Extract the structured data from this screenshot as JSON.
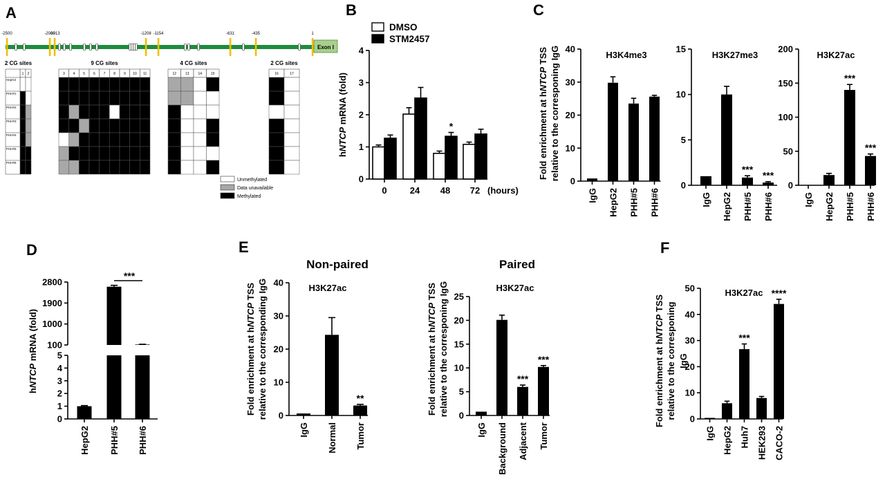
{
  "panel_labels": {
    "A": "A",
    "B": "B",
    "C": "C",
    "D": "D",
    "E": "E",
    "F": "F"
  },
  "colors": {
    "bar": "#000000",
    "open_bar": "#ffffff",
    "unavailable": "#a8a8a8",
    "gene_line": "#1e8c3c",
    "site_mark": "#f0c000",
    "exon_box": "#a8d08d"
  },
  "panel_a": {
    "positions": [
      "-2500",
      "-2000",
      "-1913",
      "-1208",
      "-1154",
      "-631",
      "-435",
      "1"
    ],
    "exon_label": "Exon I",
    "groups": [
      {
        "label": "2 CG sites",
        "cols": [
          "1",
          "2"
        ]
      },
      {
        "label": "9 CG sites",
        "cols": [
          "3",
          "4",
          "5",
          "6",
          "7",
          "8",
          "9",
          "10",
          "11"
        ]
      },
      {
        "label": "4 CG sites",
        "cols": [
          "12",
          "13",
          "14",
          "15"
        ]
      },
      {
        "label": "2 CG sites",
        "cols": [
          "16",
          "17"
        ]
      }
    ],
    "rows": [
      "HepG2",
      "PHH#1",
      "PHH#2",
      "PHH#3",
      "PHH#4",
      "PHH#5",
      "PHH#6"
    ],
    "status_matrix": [
      [
        0,
        0,
        1,
        1,
        1,
        1,
        1,
        1,
        1,
        1,
        1,
        2,
        2,
        0,
        1,
        1,
        0
      ],
      [
        1,
        0,
        1,
        1,
        1,
        1,
        1,
        1,
        1,
        1,
        1,
        2,
        2,
        0,
        0,
        1,
        0
      ],
      [
        1,
        2,
        1,
        2,
        1,
        1,
        1,
        0,
        1,
        1,
        1,
        1,
        0,
        0,
        0,
        0,
        0
      ],
      [
        1,
        2,
        1,
        1,
        2,
        1,
        1,
        1,
        1,
        1,
        1,
        1,
        0,
        0,
        1,
        1,
        0
      ],
      [
        1,
        2,
        0,
        2,
        1,
        1,
        1,
        1,
        1,
        1,
        1,
        1,
        0,
        0,
        1,
        1,
        0
      ],
      [
        1,
        1,
        2,
        1,
        1,
        1,
        1,
        1,
        1,
        1,
        1,
        1,
        0,
        0,
        0,
        1,
        0
      ],
      [
        1,
        1,
        2,
        2,
        1,
        1,
        1,
        1,
        1,
        1,
        1,
        1,
        0,
        0,
        1,
        1,
        0
      ]
    ],
    "legend": [
      "Unmethylated",
      "Data unavailable",
      "Methylated"
    ]
  },
  "chart_data": [
    {
      "panel": "B",
      "type": "bar",
      "x": [
        "0",
        "24",
        "48",
        "72"
      ],
      "x_unit": "(hours)",
      "series": [
        {
          "name": "DMSO",
          "values": [
            1.0,
            2.02,
            0.8,
            1.08
          ],
          "errors": [
            0.06,
            0.2,
            0.07,
            0.07
          ]
        },
        {
          "name": "STM2457",
          "values": [
            1.27,
            2.52,
            1.33,
            1.4
          ],
          "errors": [
            0.1,
            0.33,
            0.12,
            0.15
          ]
        }
      ],
      "ylabel_prefix": "h",
      "ylabel_gene": "NTCP",
      "ylabel_suffix": " mRNA (fold)",
      "yticks": [
        0,
        1,
        2,
        3,
        4
      ],
      "ylim": [
        0,
        4
      ],
      "annotations": [
        {
          "x": "48",
          "series": "STM2457",
          "text": "*"
        }
      ]
    },
    {
      "panel": "C",
      "type": "bar",
      "title": "H3K4me3",
      "ylabel_line1_prefix": "Fold enrichment at h",
      "ylabel_line1_gene": "NTCP",
      "ylabel_line1_suffix": " TSS",
      "ylabel_line2": "relative to the corresponing IgG",
      "categories": [
        "IgG",
        "HepG2",
        "PHH#5",
        "PHH#6"
      ],
      "values": [
        0.8,
        29.8,
        23.5,
        25.6
      ],
      "errors": [
        0,
        1.8,
        1.6,
        0.4
      ],
      "yticks": [
        0,
        10,
        20,
        30,
        40
      ],
      "ylim": [
        0,
        40
      ],
      "stars": [
        "",
        "",
        "",
        ""
      ]
    },
    {
      "panel": "C",
      "type": "bar",
      "title": "H3K27me3",
      "categories": [
        "IgG",
        "HepG2",
        "PHH#5",
        "PHH#6"
      ],
      "values": [
        1.0,
        10.0,
        0.85,
        0.3
      ],
      "errors": [
        0,
        0.9,
        0.2,
        0.1
      ],
      "yticks": [
        0,
        5,
        10,
        15
      ],
      "ylim": [
        0,
        15
      ],
      "stars": [
        "",
        "",
        "***",
        "***"
      ]
    },
    {
      "panel": "C",
      "type": "bar",
      "title": "H3K27ac",
      "categories": [
        "IgG",
        "HepG2",
        "PHH#5",
        "PHH#6"
      ],
      "values": [
        0,
        15,
        140,
        43
      ],
      "errors": [
        0,
        2.5,
        8,
        3
      ],
      "yticks": [
        0,
        50,
        100,
        150,
        200
      ],
      "ylim": [
        0,
        200
      ],
      "stars": [
        "",
        "",
        "***",
        "***"
      ]
    },
    {
      "panel": "D",
      "type": "bar",
      "ylabel_prefix": "h",
      "ylabel_gene": "NTCP",
      "ylabel_suffix": " mRNA (fold)",
      "categories": [
        "HepG2",
        "PHH#5",
        "PHH#6"
      ],
      "values": [
        1.0,
        2600,
        120
      ],
      "errors": [
        0.05,
        60,
        10
      ],
      "yticks_lower": [
        0,
        1,
        2,
        3,
        4,
        5
      ],
      "yticks_upper": [
        100,
        1000,
        1900,
        2800
      ],
      "axis_break": [
        5,
        100
      ],
      "annotations": [
        {
          "between": [
            "PHH#5",
            "PHH#6"
          ],
          "text": "***"
        }
      ]
    },
    {
      "panel": "E",
      "type": "bar",
      "title": "Non-paired",
      "subtitle": "H3K27ac",
      "ylabel_line1_prefix": "Fold enrichment at h",
      "ylabel_line1_gene": "NTCP",
      "ylabel_line1_suffix": " TSS",
      "ylabel_line2": "relative to the corresponding IgG",
      "categories": [
        "IgG",
        "Normal",
        "Tumor"
      ],
      "values": [
        0.6,
        24.3,
        3.0
      ],
      "errors": [
        0,
        5.2,
        0.35
      ],
      "yticks": [
        0,
        10,
        20,
        30,
        40
      ],
      "ylim": [
        0,
        40
      ],
      "stars": [
        "",
        "",
        "**"
      ]
    },
    {
      "panel": "E",
      "type": "bar",
      "title": "Paired",
      "subtitle": "H3K27ac",
      "ylabel_line1_prefix": "Fold enrichment at h",
      "ylabel_line1_gene": "NTCP",
      "ylabel_line1_suffix": " TSS",
      "ylabel_line2": "relative to the corresponing IgG",
      "categories": [
        "IgG",
        "Background",
        "Adjacent",
        "Tumor"
      ],
      "values": [
        0.8,
        20.1,
        6.0,
        10.2
      ],
      "errors": [
        0,
        1.0,
        0.4,
        0.3
      ],
      "yticks": [
        0,
        5,
        10,
        15,
        20,
        25
      ],
      "ylim": [
        0,
        25
      ],
      "stars": [
        "",
        "",
        "***",
        "***"
      ]
    },
    {
      "panel": "F",
      "type": "bar",
      "subtitle": "H3K27ac",
      "ylabel_line1_prefix": "Fold enrichment at h",
      "ylabel_line1_gene": "NTCP",
      "ylabel_line1_suffix": " TSS",
      "ylabel_line2": "relative to the corresponing",
      "ylabel_line3": "IgG",
      "categories": [
        "IgG",
        "HepG2",
        "Huh7",
        "HEK293",
        "CACO-2"
      ],
      "values": [
        0.4,
        6.0,
        26.7,
        8.0,
        44.0
      ],
      "errors": [
        0,
        0.8,
        2.0,
        0.6,
        1.8
      ],
      "yticks": [
        0,
        10,
        20,
        30,
        40,
        50
      ],
      "ylim": [
        0,
        50
      ],
      "stars": [
        "",
        "",
        "***",
        "",
        "****"
      ]
    }
  ]
}
